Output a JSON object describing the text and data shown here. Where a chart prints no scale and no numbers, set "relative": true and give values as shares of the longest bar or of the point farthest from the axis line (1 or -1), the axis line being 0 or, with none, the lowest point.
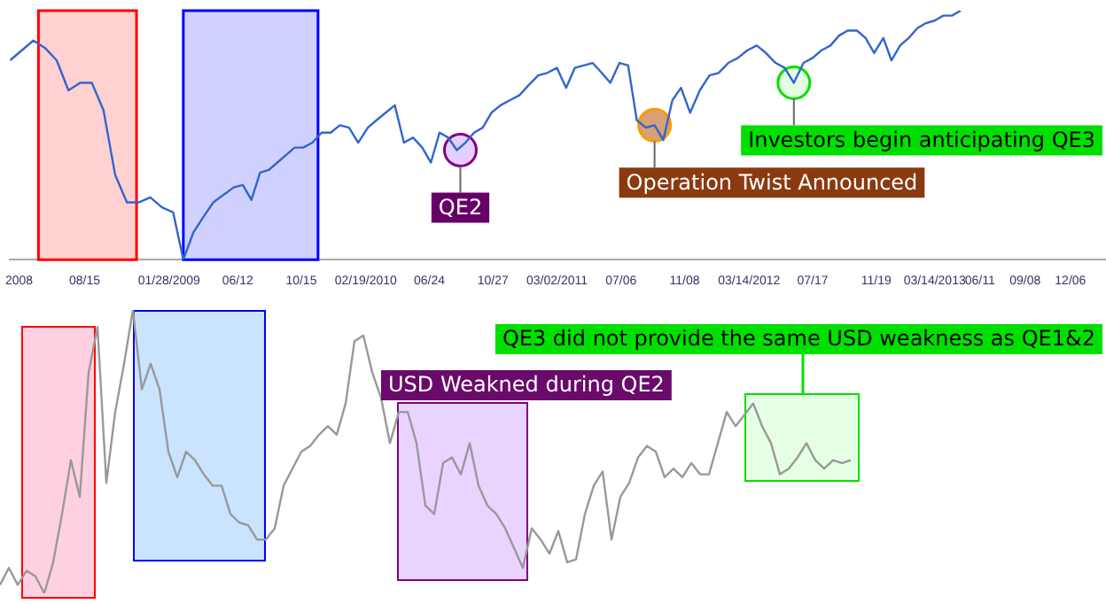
{
  "chart_data": [
    {
      "type": "line",
      "relative": true,
      "tick_labels": "x",
      "x": [
        "2008-03-21",
        "2008-04-13",
        "2008-05-06",
        "2008-05-29",
        "2008-06-21",
        "2008-07-14",
        "2008-08-06",
        "2008-08-29",
        "2008-09-21",
        "2008-10-14",
        "2008-11-06",
        "2008-11-29",
        "2008-12-22",
        "2009-01-14",
        "2009-02-05",
        "2009-02-25",
        "2009-03-17",
        "2009-04-05",
        "2009-04-25",
        "2009-05-15",
        "2009-06-04",
        "2009-06-22",
        "2009-07-09",
        "2009-07-26",
        "2009-08-12",
        "2009-08-29",
        "2009-09-15",
        "2009-10-02",
        "2009-10-19",
        "2009-11-06",
        "2009-11-24",
        "2009-12-12",
        "2009-12-30",
        "2010-01-17",
        "2010-02-04",
        "2010-02-23",
        "2010-03-12",
        "2010-03-30",
        "2010-04-17",
        "2010-05-05",
        "2010-05-23",
        "2010-06-10",
        "2010-06-27",
        "2010-07-14",
        "2010-07-31",
        "2010-08-17",
        "2010-09-03",
        "2010-09-20",
        "2010-10-07",
        "2010-10-24",
        "2010-11-11",
        "2010-11-29",
        "2010-12-18",
        "2011-01-05",
        "2011-01-24",
        "2011-02-11",
        "2011-03-02",
        "2011-03-20",
        "2011-04-06",
        "2011-04-24",
        "2011-05-11",
        "2011-05-29",
        "2011-06-15",
        "2011-07-03",
        "2011-07-20",
        "2011-08-06",
        "2011-08-24",
        "2011-09-10",
        "2011-09-27",
        "2011-10-15",
        "2011-11-01",
        "2011-11-19",
        "2011-12-08",
        "2011-12-27",
        "2012-01-14",
        "2012-02-02",
        "2012-02-21",
        "2012-03-10",
        "2012-03-29",
        "2012-04-16",
        "2012-05-05",
        "2012-05-23",
        "2012-06-10",
        "2012-06-29",
        "2012-07-17",
        "2012-08-03",
        "2012-08-21",
        "2012-09-07",
        "2012-09-24",
        "2012-10-12",
        "2012-10-29",
        "2012-11-15",
        "2012-12-03",
        "2012-12-19",
        "2013-01-05",
        "2013-01-22",
        "2013-02-08",
        "2013-02-25",
        "2013-03-14",
        "2013-03-31",
        "2013-04-17",
        "2013-05-04"
      ],
      "series": [
        {
          "color": "#3366cc",
          "values": [
            0.8,
            0.84,
            0.88,
            0.85,
            0.8,
            0.68,
            0.71,
            0.71,
            0.6,
            0.34,
            0.23,
            0.23,
            0.25,
            0.21,
            0.19,
            0.0,
            0.11,
            0.17,
            0.23,
            0.26,
            0.29,
            0.3,
            0.24,
            0.35,
            0.36,
            0.39,
            0.42,
            0.45,
            0.45,
            0.47,
            0.51,
            0.51,
            0.54,
            0.53,
            0.47,
            0.53,
            0.56,
            0.59,
            0.62,
            0.47,
            0.49,
            0.45,
            0.39,
            0.51,
            0.49,
            0.44,
            0.47,
            0.51,
            0.53,
            0.59,
            0.62,
            0.64,
            0.66,
            0.7,
            0.74,
            0.75,
            0.77,
            0.69,
            0.77,
            0.78,
            0.79,
            0.75,
            0.71,
            0.79,
            0.78,
            0.56,
            0.53,
            0.54,
            0.48,
            0.64,
            0.69,
            0.59,
            0.68,
            0.74,
            0.75,
            0.79,
            0.81,
            0.84,
            0.86,
            0.83,
            0.79,
            0.77,
            0.71,
            0.79,
            0.81,
            0.84,
            0.86,
            0.9,
            0.92,
            0.92,
            0.89,
            0.83,
            0.89,
            0.8,
            0.86,
            0.89,
            0.93,
            0.95,
            0.96,
            0.98,
            0.98,
            1.0
          ]
        }
      ],
      "xlim": [
        "2008-03-21",
        "2014-02-14"
      ],
      "xticks": [
        {
          "value": "2008-04-08",
          "label": "2008"
        },
        {
          "value": "2008-08-15",
          "label": "08/15"
        },
        {
          "value": "2009-01-28",
          "label": "01/28/2009"
        },
        {
          "value": "2009-06-12",
          "label": "06/12"
        },
        {
          "value": "2009-10-15",
          "label": "10/15"
        },
        {
          "value": "2010-02-19",
          "label": "02/19/2010"
        },
        {
          "value": "2010-06-24",
          "label": "06/24"
        },
        {
          "value": "2010-10-27",
          "label": "10/27"
        },
        {
          "value": "2011-03-02",
          "label": "03/02/2011"
        },
        {
          "value": "2011-07-06",
          "label": "07/06"
        },
        {
          "value": "2011-11-08",
          "label": "11/08"
        },
        {
          "value": "2012-03-14",
          "label": "03/14/2012"
        },
        {
          "value": "2012-07-17",
          "label": "07/17"
        },
        {
          "value": "2012-11-19",
          "label": "11/19"
        },
        {
          "value": "2013-03-14",
          "label": "03/14/2013"
        },
        {
          "value": "2013-06-11",
          "label": "06/11"
        },
        {
          "value": "2013-09-08",
          "label": "09/08"
        },
        {
          "value": "2013-12-06",
          "label": "12/06"
        }
      ],
      "bands": [
        {
          "axis": "x",
          "from": "2008-05-16",
          "to": "2008-11-25",
          "color": "#ff0000"
        },
        {
          "axis": "x",
          "from": "2009-02-25",
          "to": "2009-11-17",
          "color": "#0000ff"
        }
      ],
      "annotations": [
        {
          "text": "QE2",
          "x": "2010-08-24",
          "y": 0.44
        },
        {
          "text": "Operation Twist Announced",
          "x": "2011-09-10",
          "y": 0.54
        },
        {
          "text": "Investors begin anticipating QE3",
          "x": "2012-06-10",
          "y": 0.71
        }
      ]
    },
    {
      "type": "line",
      "relative": true,
      "tick_labels": false,
      "categories": [
        null,
        null,
        null,
        null,
        null,
        null,
        null,
        null,
        null,
        null,
        null,
        null,
        null,
        null,
        null,
        null,
        null,
        null,
        null,
        null,
        null,
        null,
        null,
        null,
        null,
        null,
        null,
        null,
        null,
        null,
        null,
        null,
        null,
        null,
        null,
        null,
        null,
        null,
        null,
        null,
        null,
        null,
        null,
        null,
        null,
        null,
        null,
        null,
        null,
        null,
        null,
        null,
        null,
        null,
        null,
        null,
        null,
        null,
        null,
        null,
        null,
        null,
        null,
        null,
        null,
        null,
        null,
        null,
        null,
        null,
        null,
        null,
        null,
        null,
        null,
        null,
        null,
        null,
        null,
        null,
        null,
        null,
        null,
        null,
        null,
        null,
        null,
        null,
        null,
        null,
        null,
        null,
        null,
        null,
        null,
        null,
        null
      ],
      "series": [
        {
          "color": "#999999",
          "values": [
            0.03,
            0.09,
            0.03,
            0.08,
            0.06,
            0.0,
            0.11,
            0.28,
            0.47,
            0.34,
            0.78,
            0.94,
            0.39,
            0.64,
            0.81,
            1.0,
            0.72,
            0.81,
            0.72,
            0.5,
            0.41,
            0.5,
            0.47,
            0.42,
            0.38,
            0.38,
            0.28,
            0.25,
            0.24,
            0.19,
            0.19,
            0.23,
            0.38,
            0.44,
            0.5,
            0.52,
            0.56,
            0.59,
            0.56,
            0.67,
            0.89,
            0.91,
            0.78,
            0.69,
            0.53,
            0.64,
            0.64,
            0.53,
            0.31,
            0.28,
            0.46,
            0.48,
            0.42,
            0.53,
            0.38,
            0.31,
            0.28,
            0.23,
            0.16,
            0.09,
            0.23,
            0.19,
            0.14,
            0.22,
            0.11,
            0.12,
            0.28,
            0.38,
            0.43,
            0.19,
            0.34,
            0.39,
            0.48,
            0.52,
            0.5,
            0.41,
            0.44,
            0.41,
            0.46,
            0.42,
            0.42,
            0.53,
            0.64,
            0.59,
            0.63,
            0.67,
            0.59,
            0.53,
            0.42,
            0.44,
            0.48,
            0.53,
            0.47,
            0.44,
            0.47,
            0.46,
            0.47
          ]
        }
      ],
      "annotations": [
        "USD Weakned during QE2",
        "QE3 did not provide the same USD weakness as QE1&2"
      ]
    }
  ]
}
